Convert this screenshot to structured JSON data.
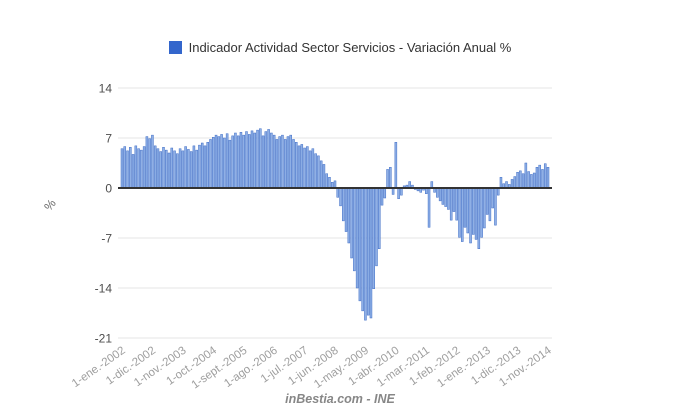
{
  "legend": {
    "label": "Indicador Actividad Sector Servicios - Variación Anual %",
    "swatch_color": "#3366cc"
  },
  "footer": {
    "text": "inBestia.com - INE"
  },
  "chart_data": {
    "type": "bar",
    "title": "Indicador Actividad Sector Servicios - Variación Anual %",
    "xlabel": "",
    "ylabel": "%",
    "ylim": [
      -21,
      14
    ],
    "y_ticks": [
      14,
      7,
      0,
      -7,
      -14,
      -21
    ],
    "grid": true,
    "legend_position": "top",
    "frequency": "monthly",
    "x_start": "1-ene.-2002",
    "x_end": "1-nov.-2014",
    "x_tick_indices": [
      0,
      11,
      22,
      33,
      44,
      55,
      66,
      77,
      88,
      99,
      110,
      121,
      132,
      143,
      154
    ],
    "x_tick_labels": [
      "1-ene.-2002",
      "1-dic.-2002",
      "1-nov.-2003",
      "1-oct.-2004",
      "1-sept.-2005",
      "1-ago.-2006",
      "1-jul.-2007",
      "1-jun.-2008",
      "1-may.-2009",
      "1-abr.-2010",
      "1-mar.-2011",
      "1-feb.-2012",
      "1-ene.-2013",
      "1-dic.-2013",
      "1-nov.-2014"
    ],
    "values": [
      5.5,
      5.8,
      5.2,
      5.7,
      4.7,
      5.9,
      5.5,
      5.3,
      5.8,
      7.2,
      6.9,
      7.4,
      5.9,
      5.5,
      5.1,
      5.7,
      5.3,
      4.9,
      5.6,
      5.2,
      4.8,
      5.5,
      5.2,
      5.8,
      5.4,
      5.1,
      5.9,
      5.3,
      6.0,
      6.3,
      5.9,
      6.4,
      6.8,
      7.1,
      7.4,
      7.2,
      7.5,
      7.0,
      7.6,
      6.7,
      7.3,
      7.7,
      7.3,
      7.8,
      7.4,
      7.9,
      7.5,
      8.0,
      7.7,
      8.1,
      8.3,
      7.3,
      7.9,
      8.2,
      7.7,
      7.4,
      6.8,
      7.2,
      7.4,
      6.8,
      7.2,
      7.4,
      6.8,
      6.4,
      5.9,
      6.1,
      5.6,
      5.8,
      5.2,
      5.5,
      4.8,
      4.5,
      3.8,
      3.3,
      2.0,
      1.5,
      0.8,
      1.0,
      -1.3,
      -2.5,
      -4.6,
      -6.1,
      -7.7,
      -9.8,
      -11.6,
      -14.0,
      -15.8,
      -17.2,
      -18.5,
      -17.8,
      -18.2,
      -14.1,
      -10.9,
      -8.5,
      -2.4,
      -1.4,
      2.6,
      2.9,
      -0.9,
      6.4,
      -1.5,
      -1.0,
      0.3,
      0.4,
      0.9,
      0.4,
      -0.2,
      -0.4,
      -0.6,
      -0.3,
      -0.8,
      -5.5,
      0.9,
      -0.6,
      -1.3,
      -1.8,
      -2.3,
      -2.6,
      -3.0,
      -4.5,
      -3.3,
      -4.5,
      -6.9,
      -7.5,
      -5.5,
      -6.3,
      -7.7,
      -6.5,
      -7.2,
      -8.5,
      -6.9,
      -5.6,
      -3.7,
      -4.6,
      -2.8,
      -5.2,
      -1.0,
      1.5,
      0.6,
      0.9,
      0.5,
      1.2,
      1.6,
      2.2,
      2.4,
      2.0,
      3.5,
      2.3,
      1.9,
      2.1,
      2.9,
      3.2,
      2.6,
      3.4,
      2.9
    ],
    "colors": {
      "bar_fill": "#8fb0e6",
      "bar_stroke": "#3f6dc6",
      "zero_axis": "#333333",
      "gridline": "#e6e6e6",
      "y_tick_text": "#4d4d4d",
      "x_tick_text": "#9e9e9e"
    }
  }
}
